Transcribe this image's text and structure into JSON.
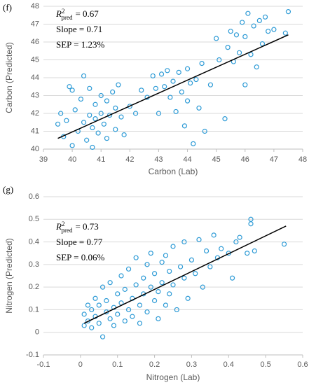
{
  "chart_data": [
    {
      "type": "scatter",
      "title": "(f)",
      "x_label": "Carbon (Lab)",
      "y_label": "Carbon (Predicted)",
      "xlim": [
        39,
        48
      ],
      "xticks": [
        39,
        40,
        41,
        42,
        43,
        44,
        45,
        46,
        47,
        48
      ],
      "ylim": [
        40,
        48
      ],
      "yticks": [
        40,
        41,
        42,
        43,
        44,
        45,
        46,
        47,
        48
      ],
      "grid": true,
      "annotation": {
        "r_symbol": "R",
        "r_superscript": "2",
        "r_subscript": "pred",
        "r_value": "= 0.67",
        "slope": "Slope = 0.71",
        "sep": "SEP = 1.23%"
      },
      "trendline": {
        "color": "#000000",
        "x": [
          39.5,
          47.5
        ],
        "y": [
          40.6,
          46.4
        ]
      },
      "series": [
        {
          "color": "#2e9bd6",
          "x": [
            39.5,
            39.6,
            39.7,
            39.8,
            39.9,
            40.0,
            40.0,
            40.1,
            40.2,
            40.3,
            40.4,
            40.4,
            40.5,
            40.6,
            40.6,
            40.7,
            40.7,
            40.8,
            40.8,
            40.9,
            41.0,
            41.0,
            41.1,
            41.2,
            41.2,
            41.3,
            41.4,
            41.5,
            41.5,
            41.6,
            41.7,
            41.8,
            42.0,
            42.2,
            42.4,
            42.6,
            42.8,
            42.9,
            43.0,
            43.1,
            43.2,
            43.3,
            43.4,
            43.5,
            43.6,
            43.7,
            43.8,
            43.9,
            44.0,
            44.0,
            44.1,
            44.2,
            44.3,
            44.4,
            44.5,
            44.6,
            44.8,
            45.0,
            45.1,
            45.3,
            45.4,
            45.5,
            45.6,
            45.7,
            45.8,
            45.9,
            46.0,
            46.0,
            46.1,
            46.2,
            46.3,
            46.4,
            46.5,
            46.6,
            46.7,
            46.8,
            47.0,
            47.4,
            47.5
          ],
          "values": [
            41.4,
            42.0,
            40.7,
            41.6,
            43.5,
            43.3,
            40.2,
            42.2,
            41.0,
            42.8,
            41.5,
            44.1,
            40.5,
            41.9,
            43.4,
            41.2,
            40.1,
            42.5,
            41.7,
            40.9,
            42.0,
            43.0,
            41.4,
            40.6,
            42.7,
            41.9,
            43.2,
            41.1,
            42.3,
            43.6,
            41.8,
            40.8,
            42.4,
            42.0,
            43.3,
            42.9,
            44.1,
            43.4,
            42.0,
            44.2,
            43.5,
            44.4,
            42.9,
            43.8,
            42.1,
            44.3,
            43.2,
            41.3,
            44.5,
            42.7,
            43.7,
            40.3,
            43.9,
            42.3,
            44.8,
            41.0,
            43.6,
            46.2,
            45.0,
            41.7,
            45.7,
            46.6,
            44.9,
            46.4,
            45.4,
            47.1,
            43.6,
            46.3,
            47.6,
            45.3,
            46.9,
            44.6,
            47.2,
            45.9,
            47.4,
            46.6,
            46.7,
            46.5,
            47.7
          ]
        }
      ]
    },
    {
      "type": "scatter",
      "title": "(g)",
      "x_label": "Nitrogen (Lab)",
      "y_label": "Nitrogen (Predicted)",
      "xlim": [
        -0.1,
        0.6
      ],
      "xticks": [
        -0.1,
        0,
        0.1,
        0.2,
        0.3,
        0.4,
        0.5,
        0.6
      ],
      "ylim": [
        -0.1,
        0.6
      ],
      "yticks": [
        -0.1,
        0,
        0.1,
        0.2,
        0.3,
        0.4,
        0.5,
        0.6
      ],
      "grid": true,
      "annotation": {
        "r_symbol": "R",
        "r_superscript": "2",
        "r_subscript": "pred",
        "r_value": "= 0.73",
        "slope": "Slope = 0.77",
        "sep": "SEP = 0.06%"
      },
      "trendline": {
        "color": "#000000",
        "x": [
          0.01,
          0.555
        ],
        "y": [
          0.04,
          0.47
        ]
      },
      "series": [
        {
          "color": "#2e9bd6",
          "x": [
            0.01,
            0.01,
            0.02,
            0.02,
            0.03,
            0.03,
            0.04,
            0.04,
            0.05,
            0.05,
            0.06,
            0.06,
            0.07,
            0.07,
            0.08,
            0.08,
            0.09,
            0.09,
            0.1,
            0.1,
            0.11,
            0.11,
            0.12,
            0.12,
            0.13,
            0.13,
            0.14,
            0.14,
            0.15,
            0.15,
            0.16,
            0.16,
            0.17,
            0.17,
            0.18,
            0.18,
            0.19,
            0.19,
            0.2,
            0.2,
            0.21,
            0.21,
            0.22,
            0.22,
            0.23,
            0.23,
            0.24,
            0.24,
            0.25,
            0.25,
            0.26,
            0.27,
            0.28,
            0.28,
            0.29,
            0.3,
            0.31,
            0.32,
            0.33,
            0.34,
            0.35,
            0.36,
            0.37,
            0.38,
            0.4,
            0.41,
            0.42,
            0.43,
            0.45,
            0.46,
            0.46,
            0.47,
            0.55
          ],
          "values": [
            0.03,
            0.08,
            0.12,
            0.05,
            0.02,
            0.1,
            0.07,
            0.15,
            0.04,
            0.12,
            -0.02,
            0.2,
            0.09,
            0.14,
            0.06,
            0.22,
            0.11,
            0.03,
            0.17,
            0.08,
            0.25,
            0.13,
            0.05,
            0.19,
            0.1,
            0.28,
            0.15,
            0.07,
            0.21,
            0.33,
            0.12,
            0.04,
            0.24,
            0.17,
            0.3,
            0.09,
            0.2,
            0.35,
            0.14,
            0.26,
            0.18,
            0.06,
            0.31,
            0.22,
            0.12,
            0.34,
            0.27,
            0.17,
            0.38,
            0.21,
            0.1,
            0.29,
            0.24,
            0.4,
            0.15,
            0.32,
            0.26,
            0.41,
            0.2,
            0.36,
            0.29,
            0.43,
            0.33,
            0.37,
            0.35,
            0.24,
            0.4,
            0.42,
            0.35,
            0.48,
            0.5,
            0.36,
            0.39
          ]
        }
      ]
    }
  ]
}
